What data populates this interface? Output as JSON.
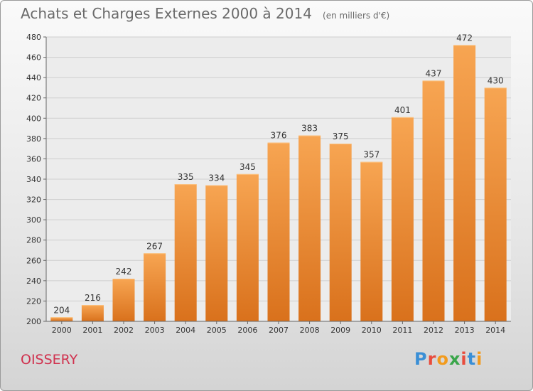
{
  "header": {
    "title": "Achats et Charges Externes 2000 à 2014",
    "unit": "(en milliers d'€)"
  },
  "footer": {
    "town": "OISSERY",
    "logo_letters": [
      "P",
      "r",
      "o",
      "x",
      "i",
      "t",
      "i"
    ]
  },
  "colors": {
    "bar_light": "#f7a552",
    "bar_dark": "#d9711c",
    "grid": "#cfcfcf",
    "logo": [
      "#3a8fd6",
      "#e84c3d",
      "#f29b1d",
      "#3aa64a",
      "#e84c3d",
      "#3a8fd6",
      "#f29b1d"
    ]
  },
  "chart_data": {
    "type": "bar",
    "title": "Achats et Charges Externes 2000 à 2014",
    "categories": [
      "2000",
      "2001",
      "2002",
      "2003",
      "2004",
      "2005",
      "2006",
      "2007",
      "2008",
      "2009",
      "2010",
      "2011",
      "2012",
      "2013",
      "2014"
    ],
    "values": [
      204,
      216,
      242,
      267,
      335,
      334,
      345,
      376,
      383,
      375,
      357,
      401,
      437,
      472,
      430
    ],
    "ylim": [
      200,
      480
    ],
    "yticks": [
      200,
      220,
      240,
      260,
      280,
      300,
      320,
      340,
      360,
      380,
      400,
      420,
      440,
      460,
      480
    ],
    "grid": true,
    "xlabel": "",
    "ylabel": ""
  }
}
